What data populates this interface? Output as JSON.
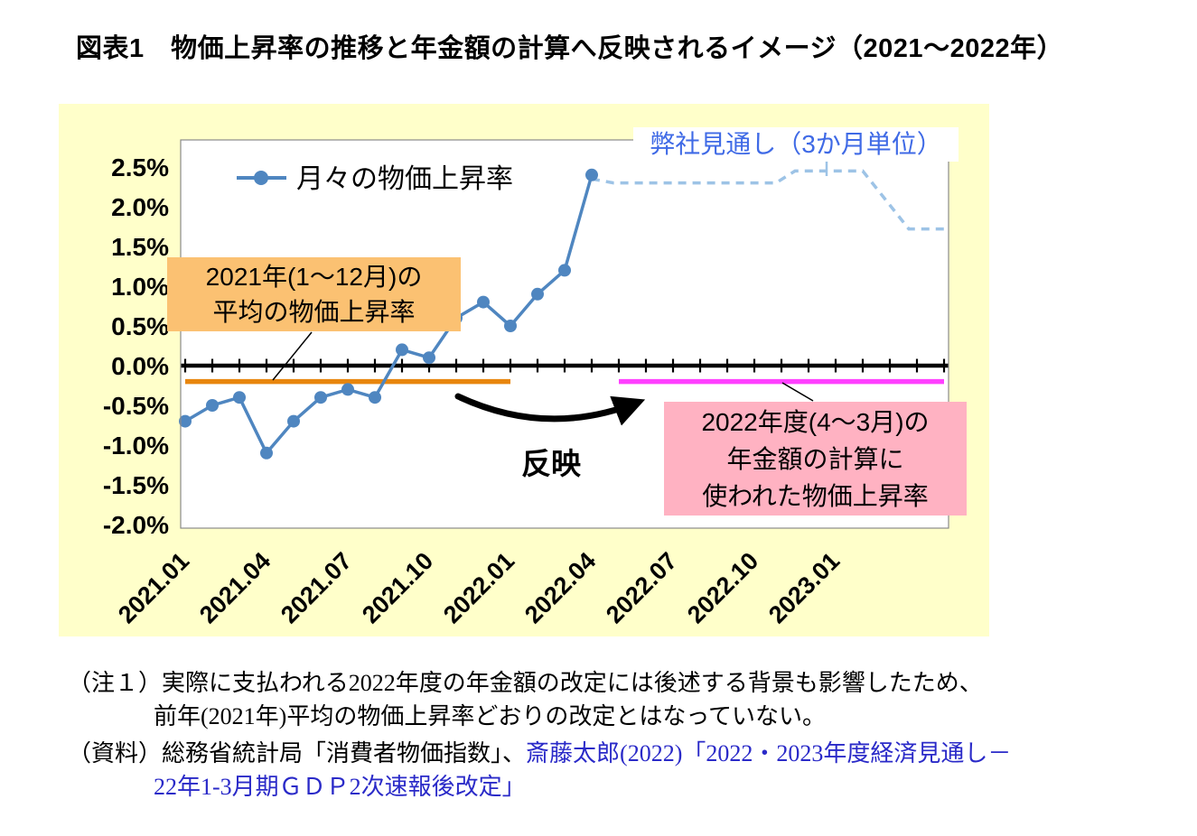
{
  "title": "図表1　物価上昇率の推移と年金額の計算へ反映されるイメージ（2021～2022年）",
  "chart_data": {
    "type": "line",
    "grid": false,
    "legend_position": "top-left-inside",
    "x_tick_labels": [
      "2021.01",
      "2021.04",
      "2021.07",
      "2021.10",
      "2022.01",
      "2022.04",
      "2022.07",
      "2022.10",
      "2023.01"
    ],
    "x_tick_months": [
      0,
      3,
      6,
      9,
      12,
      15,
      18,
      21,
      24
    ],
    "x_axis_months_total": 28,
    "y_ticks": [
      2.5,
      2.0,
      1.5,
      1.0,
      0.5,
      0.0,
      -0.5,
      -1.0,
      -1.5,
      -2.0
    ],
    "y_tick_labels": [
      "2.5%",
      "2.0%",
      "1.5%",
      "1.0%",
      "0.5%",
      "0.0%",
      "-0.5%",
      "-1.0%",
      "-1.5%",
      "-2.0%"
    ],
    "ylim": [
      -2.05,
      2.85
    ],
    "series": [
      {
        "key": "monthly",
        "name": "月々の物価上昇率",
        "type": "line",
        "marker": "circle",
        "color": "#4f86c0",
        "x": [
          0,
          1,
          2,
          3,
          4,
          5,
          6,
          7,
          8,
          9,
          10,
          11,
          12,
          13,
          14,
          15
        ],
        "values": [
          -0.7,
          -0.5,
          -0.4,
          -1.1,
          -0.7,
          -0.4,
          -0.3,
          -0.4,
          0.2,
          0.1,
          0.6,
          0.8,
          0.5,
          0.9,
          1.2,
          2.4
        ]
      },
      {
        "key": "forecast",
        "name": "弊社見通し（3か月単位）",
        "type": "dashed-line",
        "color": "#9dc3e6",
        "points": [
          [
            15,
            2.35
          ],
          [
            15.8,
            2.3
          ],
          [
            21.8,
            2.3
          ],
          [
            22.5,
            2.45
          ],
          [
            25.0,
            2.45
          ],
          [
            26.7,
            1.72
          ],
          [
            28,
            1.72
          ]
        ]
      },
      {
        "key": "avg2021",
        "name": "2021年(1～12月)の平均の物価上昇率",
        "type": "hline",
        "color": "#e8860e",
        "value": -0.2,
        "x_range": [
          0,
          12
        ]
      },
      {
        "key": "pension2022",
        "name": "2022年度(4～3月)の年金額の計算に使われた物価上昇率",
        "type": "hline",
        "color": "#ff40ff",
        "value": -0.2,
        "x_range": [
          16,
          28
        ]
      }
    ],
    "annotations": {
      "forecast_label": "弊社見通し（3か月単位）",
      "avg_box_line1": "2021年(1～12月)の",
      "avg_box_line2": "平均の物価上昇率",
      "pension_box_line1": "2022年度(4～3月)の",
      "pension_box_line2": "年金額の計算に",
      "pension_box_line3": "使われた物価上昇率",
      "arrow_label": "反映"
    }
  },
  "colors": {
    "chart_bg": "#ffffca",
    "monthly_line": "#4f86c0",
    "forecast_line": "#9dc3e6",
    "avg_line": "#e8860e",
    "pension_line": "#ff40ff",
    "forecast_text": "#3f6ae6",
    "avg_box_bg": "#fbc172",
    "pension_box_bg": "#ffb2c2",
    "link_text": "#2a2ac8"
  },
  "notes": {
    "note1_label": "（注１）",
    "note1_line1": "実際に支払われる2022年度の年金額の改定には後述する背景も影響したため、",
    "note1_line2": "前年(2021年)平均の物価上昇率どおりの改定とはなっていない。",
    "source_label": "（資料）",
    "source_text": "総務省統計局「消費者物価指数」、",
    "source_link_line1": "斎藤太郎(2022)「2022・2023年度経済見通し－",
    "source_link_line2": "22年1-3月期ＧＤＰ2次速報後改定」"
  }
}
